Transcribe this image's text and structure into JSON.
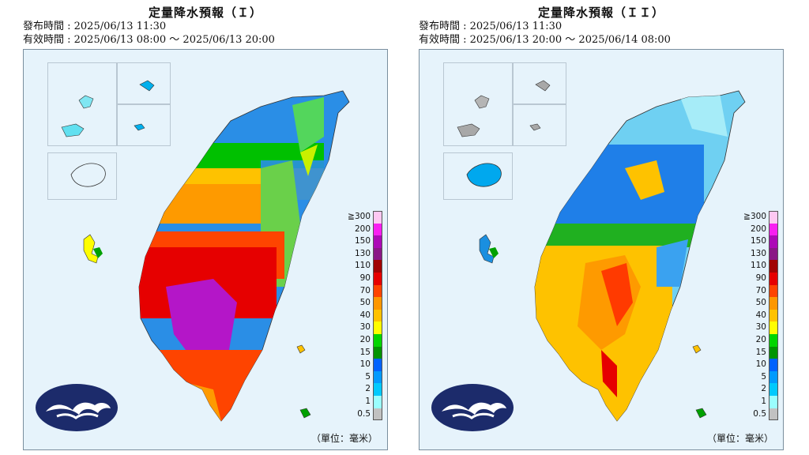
{
  "panels": [
    {
      "title": "定量降水預報（Ｉ）",
      "issued": "發布時間 : 2025/06/13 11:30",
      "valid": "有效時間 : 2025/06/13 08:00 ～ 2025/06/13 20:00"
    },
    {
      "title": "定量降水預報（ＩＩ）",
      "issued": "發布時間 : 2025/06/13 11:30",
      "valid": "有效時間 : 2025/06/13 20:00 ～ 2025/06/14 08:00"
    }
  ],
  "legend": {
    "labels": [
      "≧300",
      "200",
      "150",
      "130",
      "110",
      "90",
      "70",
      "50",
      "40",
      "30",
      "20",
      "15",
      "10",
      "5",
      "2",
      "1",
      "0.5"
    ],
    "colors": [
      "#fdc8f2",
      "#f81ff1",
      "#ac09b7",
      "#8a1786",
      "#a10404",
      "#e60000",
      "#fe4400",
      "#fd9700",
      "#fec200",
      "#fefe00",
      "#00d500",
      "#009402",
      "#0062fe",
      "#009afe",
      "#00c9fe",
      "#9afefe",
      "#c1c1c1"
    ],
    "unit": "（單位：毫米）"
  },
  "colors": {
    "sea": "#e6f3fb",
    "frame": "#7a8e9e",
    "logo_bg": "#1c2b6b"
  },
  "icons": {
    "logo": "cwa-cloud-logo"
  }
}
